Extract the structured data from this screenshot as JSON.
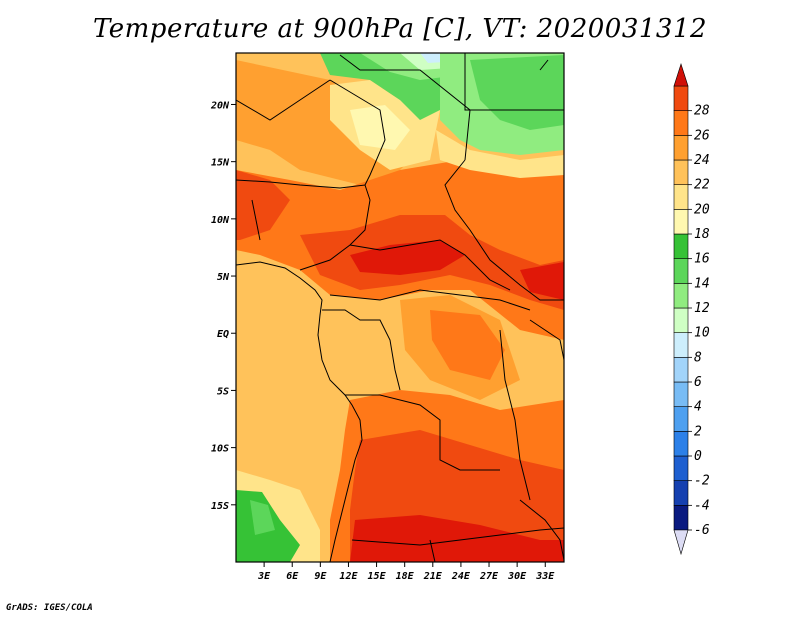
{
  "title": "Temperature at 900hPa [C], VT: 2020031312",
  "credit": "GrADS: IGES/COLA",
  "map": {
    "lon_range": [
      0,
      35
    ],
    "lat_range": [
      -20,
      24.5
    ],
    "x_ticks": [
      {
        "value": 3,
        "label": "3E"
      },
      {
        "value": 6,
        "label": "6E"
      },
      {
        "value": 9,
        "label": "9E"
      },
      {
        "value": 12,
        "label": "12E"
      },
      {
        "value": 15,
        "label": "15E"
      },
      {
        "value": 18,
        "label": "18E"
      },
      {
        "value": 21,
        "label": "21E"
      },
      {
        "value": 24,
        "label": "24E"
      },
      {
        "value": 27,
        "label": "27E"
      },
      {
        "value": 30,
        "label": "30E"
      },
      {
        "value": 33,
        "label": "33E"
      }
    ],
    "y_ticks": [
      {
        "value": 20,
        "label": "20N"
      },
      {
        "value": 15,
        "label": "15N"
      },
      {
        "value": 10,
        "label": "10N"
      },
      {
        "value": 5,
        "label": "5N"
      },
      {
        "value": 0,
        "label": "EQ"
      },
      {
        "value": -5,
        "label": "5S"
      },
      {
        "value": -10,
        "label": "10S"
      },
      {
        "value": -15,
        "label": "15S"
      }
    ]
  },
  "colorbar": {
    "levels": [
      "-6",
      "-4",
      "-2",
      "0",
      "2",
      "4",
      "6",
      "8",
      "10",
      "12",
      "14",
      "16",
      "18",
      "20",
      "22",
      "24",
      "26",
      "28"
    ],
    "colors": [
      "#0a1a80",
      "#1540b0",
      "#1e5fd0",
      "#2c80e8",
      "#4ea0f0",
      "#78bcf5",
      "#a2d4fa",
      "#cdeefc",
      "#cfffc4",
      "#90ec80",
      "#5cd65a",
      "#36c236",
      "#fff8b0",
      "#ffe48a",
      "#ffc25a",
      "#ffa030",
      "#ff7818",
      "#f04a10",
      "#e01808"
    ],
    "under_color": "#dcdcf4",
    "over_color": "#d01008"
  }
}
